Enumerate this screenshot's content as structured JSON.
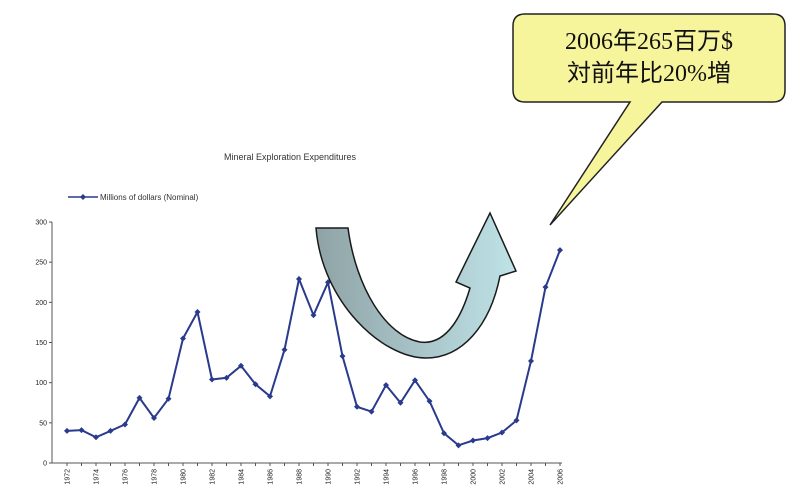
{
  "callout": {
    "line1": "2006年265百万$",
    "line2": "対前年比20%増",
    "fill_color": "#f7f59c",
    "border_color": "#222222"
  },
  "chart_data": {
    "type": "line",
    "title": "Mineral Exploration Expenditures",
    "legend": "Millions of dollars (Nominal)",
    "legend_position": "top-left",
    "grid": false,
    "series_color": "#2a3a8c",
    "ylim": [
      0,
      300
    ],
    "yticks": [
      0,
      50,
      100,
      150,
      200,
      250,
      300
    ],
    "x_tick_labels": [
      "1972",
      "1974",
      "1976",
      "1978",
      "1980",
      "1982",
      "1984",
      "1986",
      "1988",
      "1990",
      "1992",
      "1994",
      "1996",
      "1998",
      "2000",
      "2002",
      "2004",
      "2006"
    ],
    "x": [
      1972,
      1973,
      1974,
      1975,
      1976,
      1977,
      1978,
      1979,
      1980,
      1981,
      1982,
      1983,
      1984,
      1985,
      1986,
      1987,
      1988,
      1989,
      1990,
      1991,
      1992,
      1993,
      1994,
      1995,
      1996,
      1997,
      1998,
      1999,
      2000,
      2001,
      2002,
      2003,
      2004,
      2005,
      2006
    ],
    "series": [
      {
        "values": [
          40,
          41,
          32,
          40,
          48,
          81,
          56,
          80,
          155,
          188,
          104,
          106,
          121,
          98,
          83,
          141,
          229,
          184,
          225,
          133,
          70,
          64,
          97,
          75,
          103,
          77,
          37,
          22,
          28,
          31,
          38,
          53,
          127,
          219,
          265
        ]
      }
    ]
  },
  "arrow": {
    "left_color": "#8fa3a6",
    "right_color": "#bfe3e8"
  }
}
